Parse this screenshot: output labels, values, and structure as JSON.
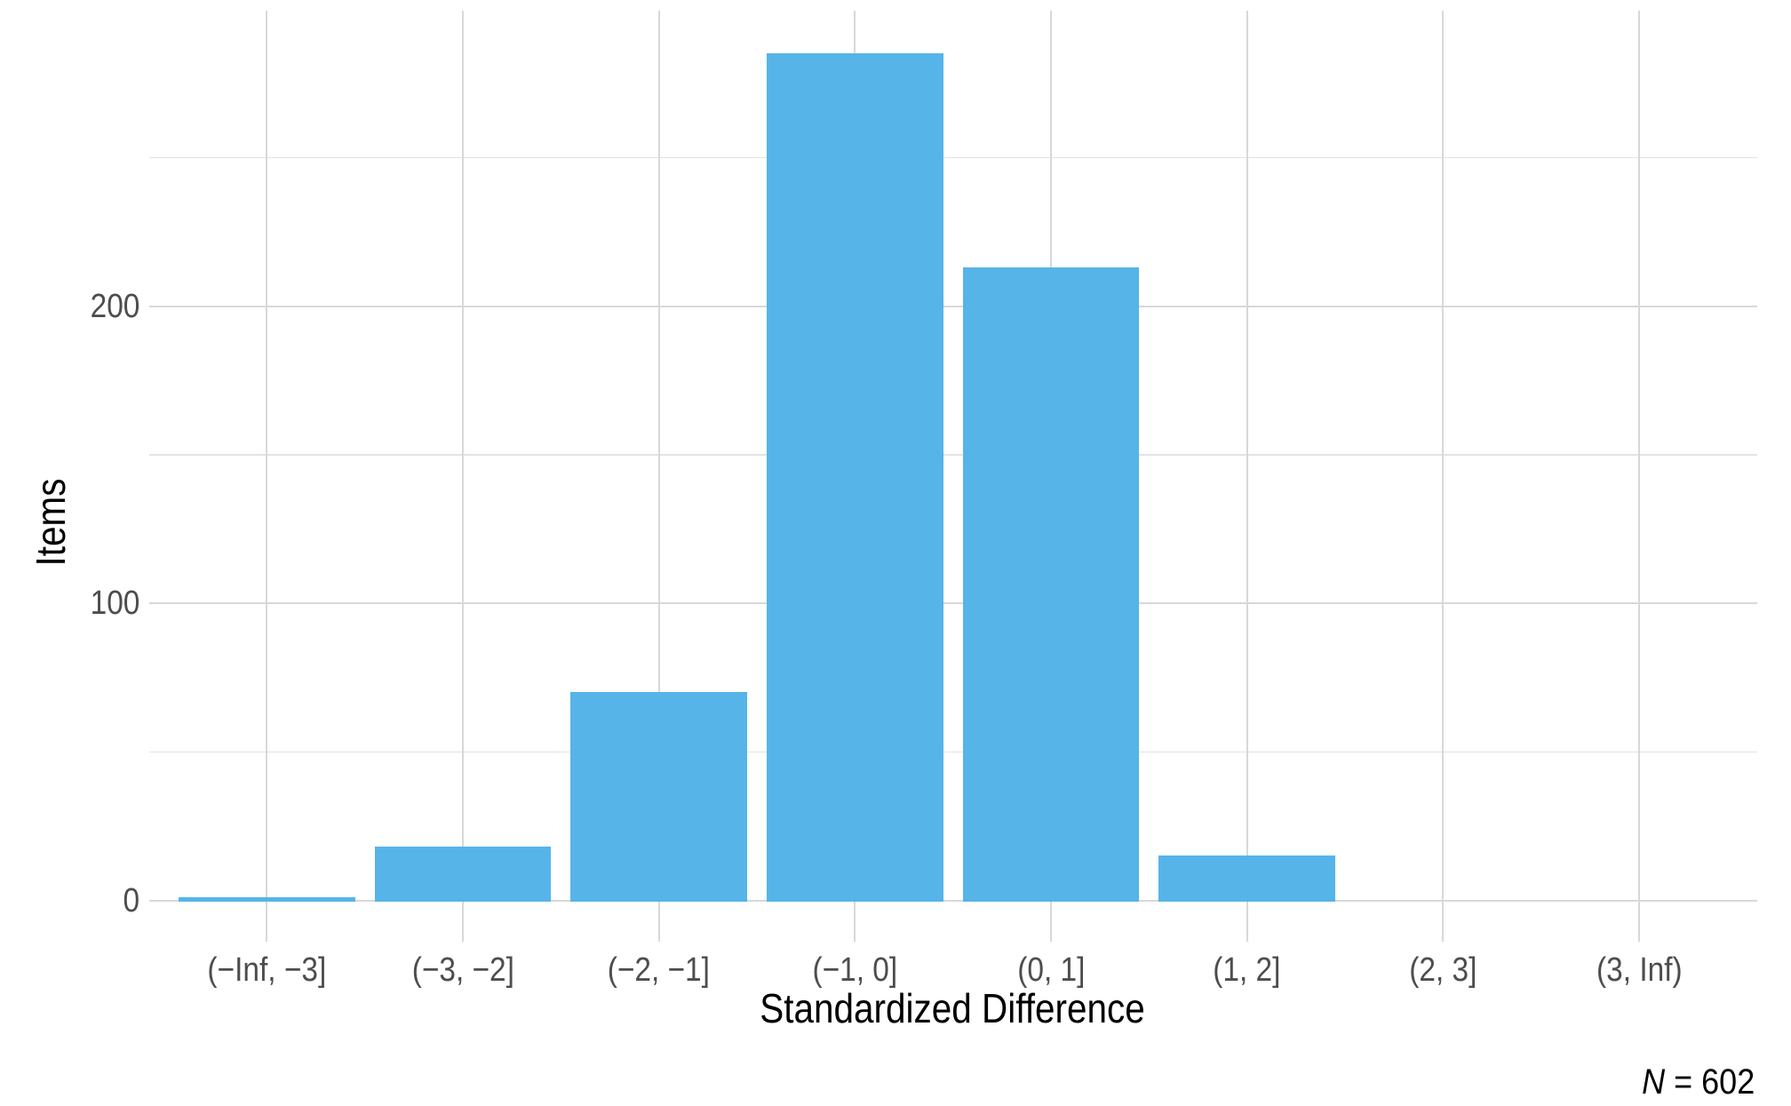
{
  "chart_data": {
    "type": "bar",
    "title": "",
    "categories": [
      "(−Inf, −3]",
      "(−3, −2]",
      "(−2, −1]",
      "(−1, 0]",
      "(0, 1]",
      "(1, 2]",
      "(2, 3]",
      "(3, Inf)"
    ],
    "values": [
      1,
      18,
      70,
      285,
      213,
      15,
      0,
      0
    ],
    "xlabel": "Standardized Difference",
    "ylabel": "Items",
    "y_ticks": [
      0,
      100,
      200
    ],
    "y_minor_ticks": [
      50,
      150,
      250
    ],
    "ylim": [
      0,
      300
    ],
    "grid": "major and minor horizontal, major vertical at category centers",
    "legend_position": "none",
    "caption_symbol": "N",
    "caption_rest": " = 602",
    "colors": {
      "bar_fill": "#56B4E9",
      "grid_major": "#d8d8d8",
      "grid_minor": "#e3e3e3",
      "tick_label": "#4d4d4d",
      "axis_title": "#000000",
      "background": "#ffffff"
    }
  }
}
